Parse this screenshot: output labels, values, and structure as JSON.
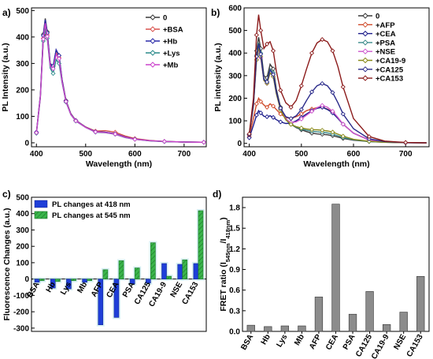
{
  "chart_data": [
    {
      "panel": "a)",
      "type": "line",
      "xlabel": "Wavelength (nm)",
      "ylabel": "PL Intensity (a.u.)",
      "xlim": [
        390,
        745
      ],
      "ylim": [
        -15,
        510
      ],
      "xticks": [
        400,
        500,
        600,
        700
      ],
      "yticks": [
        0,
        100,
        200,
        300,
        400,
        500
      ],
      "x": [
        400,
        408,
        414,
        418,
        422,
        428,
        434,
        440,
        446,
        452,
        460,
        470,
        480,
        500,
        520,
        540,
        560,
        580,
        600,
        630,
        660,
        700,
        740
      ],
      "series": [
        {
          "name": "0",
          "color": "#3a3a3a",
          "values": [
            40,
            180,
            410,
            470,
            420,
            300,
            290,
            350,
            330,
            240,
            160,
            110,
            85,
            60,
            42,
            40,
            34,
            22,
            14,
            8,
            5,
            3,
            2
          ]
        },
        {
          "name": "+BSA",
          "color": "#d9534f",
          "values": [
            38,
            175,
            395,
            455,
            408,
            295,
            288,
            340,
            322,
            236,
            158,
            108,
            84,
            60,
            44,
            46,
            40,
            26,
            16,
            9,
            5,
            3,
            2
          ]
        },
        {
          "name": "+Hb",
          "color": "#2a2aa8",
          "values": [
            40,
            178,
            405,
            465,
            415,
            298,
            290,
            352,
            330,
            238,
            158,
            108,
            84,
            59,
            42,
            40,
            34,
            22,
            14,
            8,
            5,
            3,
            2
          ]
        },
        {
          "name": "+Lys",
          "color": "#2a8a8a",
          "values": [
            36,
            170,
            385,
            440,
            395,
            282,
            262,
            315,
            300,
            228,
            154,
            106,
            82,
            58,
            40,
            38,
            32,
            20,
            13,
            7,
            4,
            3,
            2
          ]
        },
        {
          "name": "+Mb",
          "color": "#cc44cc",
          "values": [
            38,
            174,
            392,
            452,
            402,
            290,
            280,
            335,
            318,
            232,
            156,
            107,
            83,
            58,
            41,
            39,
            33,
            21,
            13,
            8,
            5,
            3,
            2
          ]
        }
      ]
    },
    {
      "panel": "b)",
      "type": "line",
      "xlabel": "Wavelength (nm)",
      "ylabel": "PL intensity (a.u.)",
      "xlim": [
        390,
        745
      ],
      "ylim": [
        -15,
        600
      ],
      "xticks": [
        400,
        500,
        600,
        700
      ],
      "yticks": [
        0,
        100,
        200,
        300,
        400,
        500,
        600
      ],
      "x": [
        400,
        408,
        414,
        418,
        422,
        428,
        434,
        440,
        446,
        452,
        460,
        470,
        480,
        490,
        500,
        510,
        520,
        530,
        540,
        550,
        560,
        570,
        580,
        600,
        630,
        660,
        700,
        740
      ],
      "series": [
        {
          "name": "0",
          "color": "#3a3a3a",
          "values": [
            40,
            180,
            410,
            470,
            420,
            300,
            290,
            350,
            330,
            240,
            160,
            110,
            85,
            70,
            60,
            52,
            45,
            42,
            40,
            38,
            34,
            28,
            22,
            14,
            8,
            5,
            3,
            2
          ]
        },
        {
          "name": "+AFP",
          "color": "#d04a2a",
          "values": [
            30,
            110,
            175,
            200,
            185,
            170,
            160,
            175,
            165,
            150,
            130,
            115,
            110,
            118,
            130,
            145,
            152,
            158,
            160,
            152,
            138,
            112,
            85,
            45,
            15,
            6,
            3,
            2
          ]
        },
        {
          "name": "+CEA",
          "color": "#1a1a8a",
          "values": [
            25,
            80,
            125,
            145,
            135,
            120,
            118,
            122,
            115,
            105,
            95,
            88,
            90,
            100,
            115,
            130,
            145,
            155,
            160,
            150,
            135,
            110,
            85,
            45,
            15,
            6,
            3,
            2
          ]
        },
        {
          "name": "+PSA",
          "color": "#3a8a8a",
          "values": [
            40,
            170,
            390,
            445,
            400,
            285,
            272,
            330,
            312,
            228,
            152,
            106,
            85,
            72,
            64,
            58,
            54,
            51,
            49,
            46,
            41,
            34,
            26,
            16,
            8,
            5,
            3,
            2
          ]
        },
        {
          "name": "+NSE",
          "color": "#cc55cc",
          "values": [
            38,
            165,
            370,
            420,
            380,
            278,
            265,
            312,
            296,
            222,
            150,
            108,
            92,
            95,
            108,
            125,
            142,
            158,
            168,
            160,
            142,
            115,
            85,
            45,
            15,
            6,
            3,
            2
          ]
        },
        {
          "name": "+CA19-9",
          "color": "#8a8a1a",
          "values": [
            38,
            165,
            370,
            425,
            385,
            278,
            266,
            312,
            296,
            220,
            148,
            104,
            84,
            74,
            68,
            64,
            61,
            60,
            58,
            55,
            50,
            41,
            32,
            18,
            9,
            5,
            3,
            2
          ]
        },
        {
          "name": "+CA125",
          "color": "#2a2a8a",
          "values": [
            38,
            172,
            385,
            440,
            395,
            282,
            272,
            325,
            305,
            228,
            156,
            118,
            110,
            122,
            150,
            190,
            228,
            255,
            265,
            255,
            225,
            180,
            130,
            65,
            20,
            8,
            3,
            2
          ]
        },
        {
          "name": "+CA153",
          "color": "#8b1a1a",
          "values": [
            42,
            200,
            480,
            570,
            500,
            420,
            440,
            450,
            410,
            320,
            235,
            180,
            160,
            190,
            255,
            330,
            400,
            445,
            460,
            450,
            410,
            340,
            250,
            110,
            30,
            10,
            4,
            2
          ]
        }
      ]
    },
    {
      "panel": "c)",
      "type": "bar",
      "ylabel": "Fluorescence Changes (a.u.)",
      "ylim": [
        -320,
        500
      ],
      "yticks": [
        -300,
        -200,
        -100,
        0,
        100,
        200,
        300,
        400,
        500
      ],
      "categories": [
        "BSA",
        "Hb",
        "Lys",
        "Mb",
        "AFP",
        "CEA",
        "PSA",
        "CA125",
        "CA19-9",
        "NSE",
        "CA153"
      ],
      "series": [
        {
          "name": "PL changes at 418 nm",
          "color": "#1f3fd8",
          "values": [
            -20,
            -55,
            -60,
            -20,
            -280,
            -235,
            -30,
            -25,
            95,
            90,
            95
          ]
        },
        {
          "name": "PL changes at 545 nm",
          "color": "#3ab54a",
          "values": [
            -10,
            -15,
            -10,
            -10,
            57,
            112,
            68,
            222,
            17,
            117,
            418
          ]
        }
      ]
    },
    {
      "panel": "d)",
      "type": "bar",
      "ylabel": "FRET ratio (I545nm/I418nm)",
      "ylim": [
        0,
        1.95
      ],
      "yticks": [
        0.0,
        0.3,
        0.6,
        0.9,
        1.2,
        1.5,
        1.8
      ],
      "ytick_labels": [
        "0.0",
        "0.3",
        "0.6",
        "0.9",
        "1.2",
        "1.5",
        "1.8"
      ],
      "categories": [
        "BSA",
        "Hb",
        "Lys",
        "Mb",
        "AFP",
        "CEA",
        "PSA",
        "CA125",
        "CA19-9",
        "NSE",
        "CA153"
      ],
      "series": [
        {
          "color": "#8c8c8c",
          "values": [
            0.09,
            0.07,
            0.08,
            0.08,
            0.5,
            1.85,
            0.25,
            0.58,
            0.1,
            0.28,
            0.8
          ]
        }
      ]
    }
  ]
}
